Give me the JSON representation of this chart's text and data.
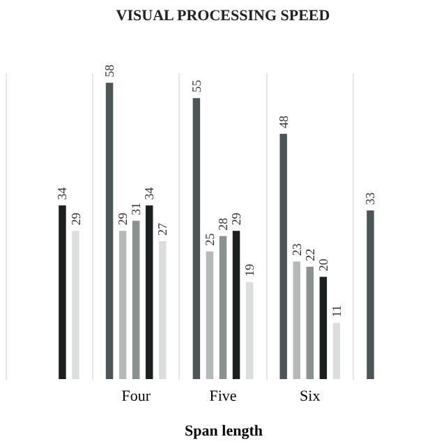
{
  "chart_data": {
    "type": "bar",
    "title": "VISUAL PROCESSING SPEED",
    "xlabel": "Span length",
    "categories": [
      null,
      "Four",
      "Five",
      "Six",
      null
    ],
    "series": [
      {
        "color": "#4d5656",
        "values": [
          null,
          58,
          55,
          48,
          33
        ]
      },
      {
        "color": "#b5bab8",
        "values": [
          null,
          29,
          25,
          23,
          null
        ]
      },
      {
        "color": "#8a9290",
        "values": [
          null,
          31,
          28,
          22,
          null
        ]
      },
      {
        "color": "#1b1f1f",
        "values": [
          34,
          34,
          29,
          20,
          null
        ]
      },
      {
        "color": "#dcdedd",
        "values": [
          29,
          27,
          19,
          11,
          null
        ]
      }
    ],
    "data_labels": true,
    "grid": "x"
  }
}
